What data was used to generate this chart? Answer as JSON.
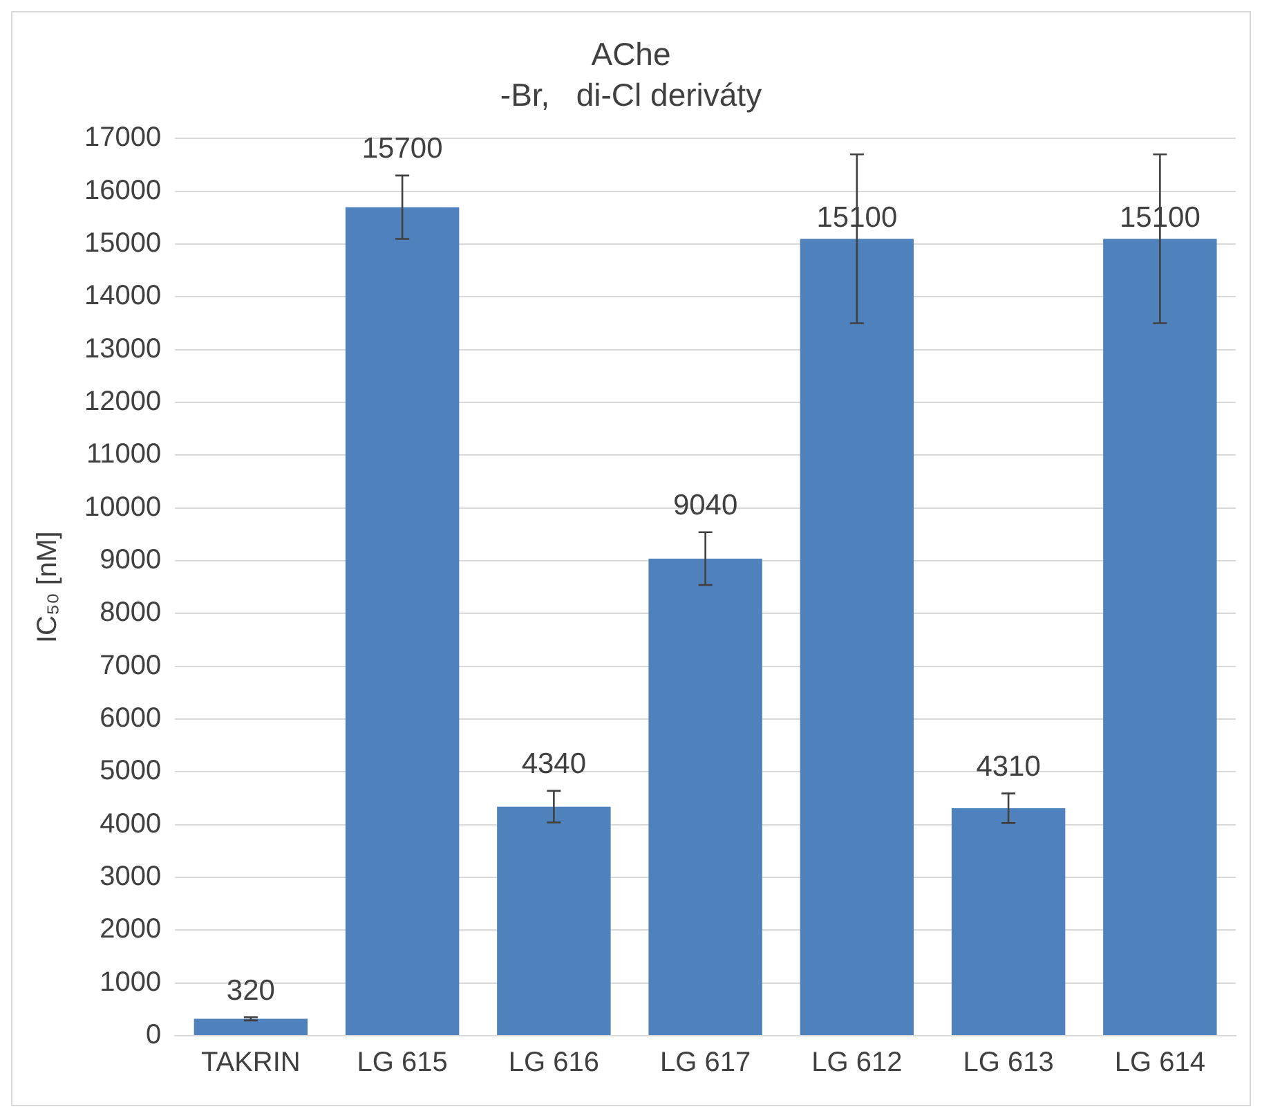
{
  "chart_data": {
    "type": "bar",
    "title": "AChe",
    "subtitle": "-Br,   di-Cl deriváty",
    "ylabel": "IC₅₀ [nM]",
    "categories": [
      "TAKRIN",
      "LG 615",
      "LG 616",
      "LG 617",
      "LG 612",
      "LG 613",
      "LG 614"
    ],
    "values": [
      320,
      15700,
      4340,
      9040,
      15100,
      4310,
      15100
    ],
    "errors": [
      30,
      600,
      300,
      500,
      1600,
      280,
      1600
    ],
    "color": "#4f81bd",
    "ylim": [
      0,
      17000
    ],
    "yticks": [
      0,
      1000,
      2000,
      3000,
      4000,
      5000,
      6000,
      7000,
      8000,
      9000,
      10000,
      11000,
      12000,
      13000,
      14000,
      15000,
      16000,
      17000
    ],
    "grid": "y",
    "legend": false,
    "data_labels": true
  }
}
